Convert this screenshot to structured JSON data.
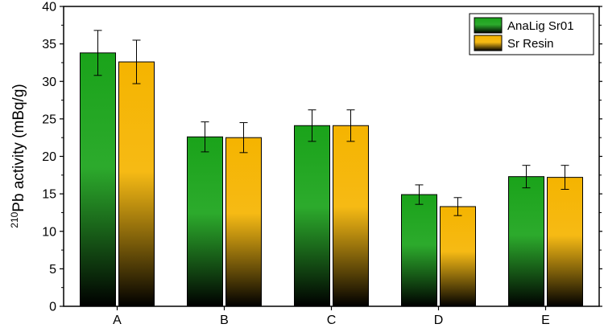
{
  "chart_data": {
    "type": "bar",
    "categories": [
      "A",
      "B",
      "C",
      "D",
      "E"
    ],
    "series": [
      {
        "name": "AnaLig Sr01",
        "color": "#1aa31a",
        "values": [
          33.8,
          22.6,
          24.1,
          14.9,
          17.3
        ],
        "errors": [
          3.0,
          2.0,
          2.1,
          1.3,
          1.5
        ]
      },
      {
        "name": "Sr Resin",
        "color": "#f5b400",
        "values": [
          32.6,
          22.5,
          24.1,
          13.3,
          17.2
        ],
        "errors": [
          2.9,
          2.0,
          2.1,
          1.2,
          1.6
        ]
      }
    ],
    "title": "",
    "xlabel": "",
    "ylabel": {
      "superscript": "210",
      "text": "Pb activity (mBq/g)"
    },
    "ylim": [
      0,
      40
    ],
    "yticks": [
      "0",
      "5",
      "10",
      "15",
      "20",
      "25",
      "30",
      "35",
      "40"
    ],
    "legend_position": "top-right",
    "grid": false
  }
}
